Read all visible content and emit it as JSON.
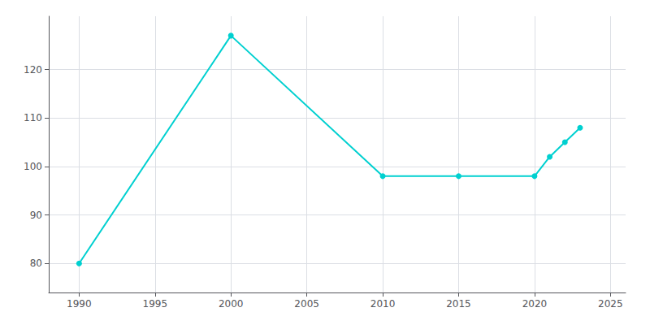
{
  "chart_data": {
    "type": "line",
    "x": [
      1990,
      2000,
      2010,
      2015,
      2020,
      2021,
      2022,
      2023
    ],
    "values": [
      80,
      127,
      98,
      98,
      98,
      102,
      105,
      108
    ],
    "color": "#00d0d0",
    "marker": "circle",
    "xlim": [
      1988,
      2026
    ],
    "xticks": [
      1990,
      1995,
      2000,
      2005,
      2010,
      2015,
      2020,
      2025
    ],
    "ylim": [
      74,
      131
    ],
    "yticks": [
      80,
      90,
      100,
      110,
      120
    ],
    "grid": true
  }
}
